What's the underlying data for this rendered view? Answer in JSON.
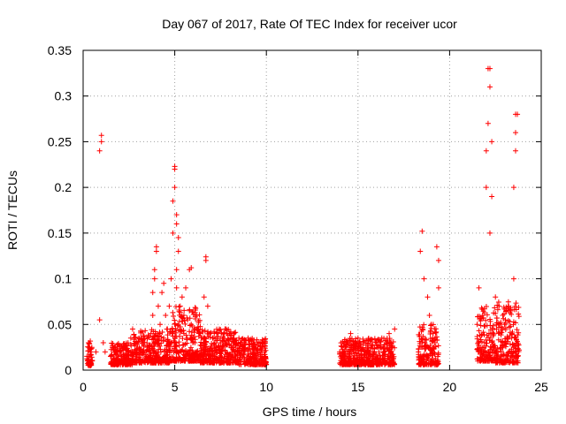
{
  "chart_data": {
    "type": "scatter",
    "title": "Day 067 of 2017, Rate Of TEC Index for receiver ucor",
    "xlabel": "GPS time / hours",
    "ylabel": "ROTI / TECUs",
    "xlim": [
      0,
      25
    ],
    "ylim": [
      0,
      0.35
    ],
    "x_ticks": [
      0,
      5,
      10,
      15,
      20,
      25
    ],
    "x_tick_labels": [
      "0",
      "5",
      "10",
      "15",
      "20",
      "25"
    ],
    "y_ticks": [
      0,
      0.05,
      0.1,
      0.15,
      0.2,
      0.25,
      0.3,
      0.35
    ],
    "y_tick_labels": [
      "0",
      "0.05",
      "0.1",
      "0.15",
      "0.2",
      "0.25",
      "0.3",
      "0.35"
    ],
    "grid": true,
    "marker": "+",
    "color": "#ff0000",
    "series": [
      {
        "x": [
          0.3,
          0.3,
          0.3,
          0.4,
          0.4,
          0.7,
          0.9,
          0.9,
          1.0,
          1.0,
          1.1,
          1.2,
          1.5,
          1.6,
          1.7,
          2.0,
          2.3,
          2.6,
          2.7,
          2.9,
          3.2,
          3.5,
          3.7,
          3.8,
          3.8,
          3.9,
          3.9,
          4.0,
          4.0,
          4.1,
          4.2,
          4.3,
          4.4,
          4.5,
          4.6,
          4.7,
          4.8,
          4.9,
          4.9,
          5.0,
          5.0,
          5.0,
          5.1,
          5.1,
          5.1,
          5.1,
          5.2,
          5.2,
          5.3,
          5.4,
          5.5,
          5.5,
          5.6,
          5.7,
          5.8,
          5.9,
          5.9,
          6.0,
          6.1,
          6.2,
          6.4,
          6.6,
          6.7,
          6.7,
          6.8,
          6.9,
          7.1,
          7.3,
          7.5,
          7.8,
          8.0,
          8.3,
          8.5,
          8.8,
          9.0,
          9.3,
          9.6,
          9.9,
          14.0,
          14.3,
          14.6,
          15.0,
          15.3,
          15.7,
          16.0,
          16.3,
          16.7,
          17.0,
          18.3,
          18.4,
          18.5,
          18.6,
          18.8,
          18.9,
          19.0,
          19.1,
          19.2,
          19.3,
          19.4,
          19.4,
          21.5,
          21.6,
          21.8,
          21.9,
          22.0,
          22.0,
          22.1,
          22.1,
          22.2,
          22.2,
          22.2,
          22.3,
          22.3,
          22.5,
          22.7,
          22.9,
          23.0,
          23.2,
          23.4,
          23.5,
          23.5,
          23.6,
          23.6,
          23.6,
          23.7
        ],
        "y": [
          0.015,
          0.025,
          0.03,
          0.01,
          0.02,
          0.02,
          0.055,
          0.24,
          0.25,
          0.257,
          0.03,
          0.02,
          0.015,
          0.025,
          0.02,
          0.02,
          0.025,
          0.035,
          0.045,
          0.02,
          0.03,
          0.025,
          0.04,
          0.06,
          0.085,
          0.1,
          0.11,
          0.13,
          0.135,
          0.07,
          0.05,
          0.085,
          0.095,
          0.06,
          0.045,
          0.07,
          0.1,
          0.15,
          0.185,
          0.22,
          0.223,
          0.2,
          0.16,
          0.17,
          0.09,
          0.11,
          0.13,
          0.145,
          0.07,
          0.08,
          0.04,
          0.06,
          0.09,
          0.055,
          0.11,
          0.112,
          0.05,
          0.035,
          0.03,
          0.045,
          0.04,
          0.08,
          0.12,
          0.124,
          0.07,
          0.04,
          0.035,
          0.04,
          0.03,
          0.045,
          0.04,
          0.03,
          0.035,
          0.03,
          0.035,
          0.025,
          0.03,
          0.02,
          0.02,
          0.025,
          0.04,
          0.035,
          0.03,
          0.025,
          0.03,
          0.035,
          0.04,
          0.045,
          0.02,
          0.13,
          0.152,
          0.1,
          0.08,
          0.06,
          0.05,
          0.04,
          0.03,
          0.135,
          0.09,
          0.12,
          0.05,
          0.09,
          0.06,
          0.03,
          0.24,
          0.2,
          0.27,
          0.33,
          0.33,
          0.31,
          0.15,
          0.19,
          0.25,
          0.08,
          0.07,
          0.06,
          0.05,
          0.07,
          0.04,
          0.1,
          0.2,
          0.24,
          0.26,
          0.28,
          0.28
        ],
        "dense_bands": [
          {
            "x": [
              0.2,
              0.5
            ],
            "y": [
              0.005,
              0.032
            ]
          },
          {
            "x": [
              1.5,
              2.7
            ],
            "y": [
              0.006,
              0.03
            ]
          },
          {
            "x": [
              2.7,
              4.8
            ],
            "y": [
              0.008,
              0.045
            ]
          },
          {
            "x": [
              4.8,
              6.4
            ],
            "y": [
              0.01,
              0.07
            ]
          },
          {
            "x": [
              6.4,
              8.4
            ],
            "y": [
              0.008,
              0.045
            ]
          },
          {
            "x": [
              8.4,
              10.0
            ],
            "y": [
              0.006,
              0.035
            ]
          },
          {
            "x": [
              14.0,
              17.0
            ],
            "y": [
              0.006,
              0.035
            ]
          },
          {
            "x": [
              18.3,
              19.4
            ],
            "y": [
              0.006,
              0.05
            ]
          },
          {
            "x": [
              21.5,
              22.5
            ],
            "y": [
              0.01,
              0.07
            ]
          },
          {
            "x": [
              22.5,
              23.8
            ],
            "y": [
              0.008,
              0.075
            ]
          }
        ]
      }
    ]
  }
}
